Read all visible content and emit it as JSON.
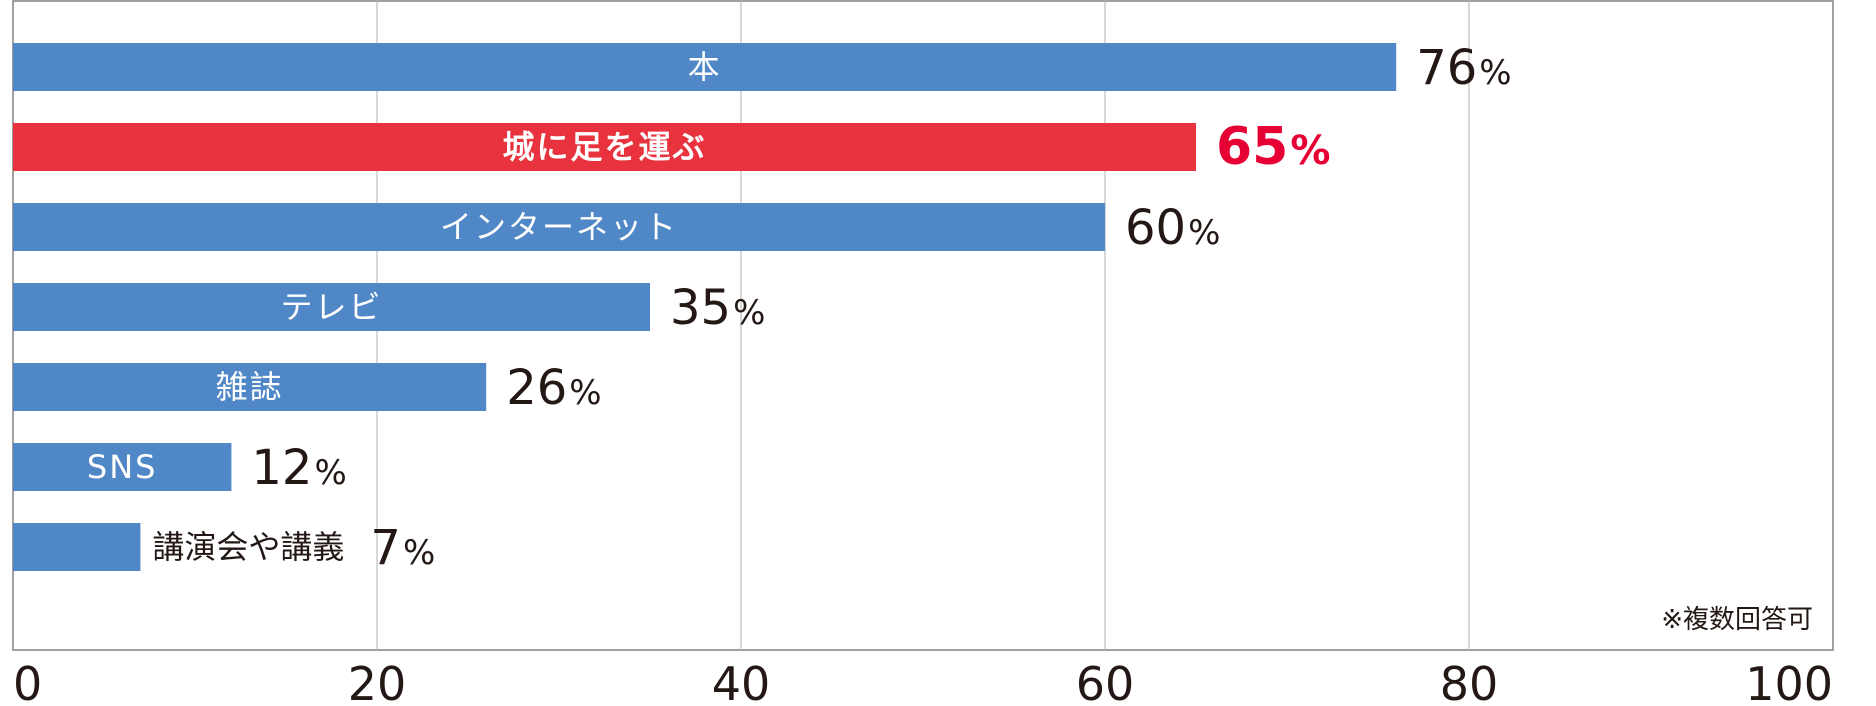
{
  "chart_data": {
    "type": "bar",
    "orientation": "horizontal",
    "title": "",
    "xlabel": "",
    "ylabel": "",
    "xlim": [
      0,
      100
    ],
    "x_ticks": [
      0,
      20,
      40,
      60,
      80,
      100
    ],
    "grid": "vertical",
    "categories": [
      "本",
      "城に足を運ぶ",
      "インターネット",
      "テレビ",
      "雑誌",
      "SNS",
      "講演会や講義"
    ],
    "values": [
      76,
      65,
      60,
      35,
      26,
      12,
      7
    ],
    "value_labels": [
      "76",
      "65",
      "60",
      "35",
      "26",
      "12",
      "7"
    ],
    "unit": "%",
    "highlight_index": 1,
    "annotation": "※複数回答可"
  },
  "colors": {
    "bar": "#4f87c7",
    "highlight": "#e8333f",
    "highlight_text": "#e60033",
    "text": "#231815",
    "grid": "#bfbfbf",
    "axis": "#808080",
    "bar_label": "#ffffff"
  }
}
